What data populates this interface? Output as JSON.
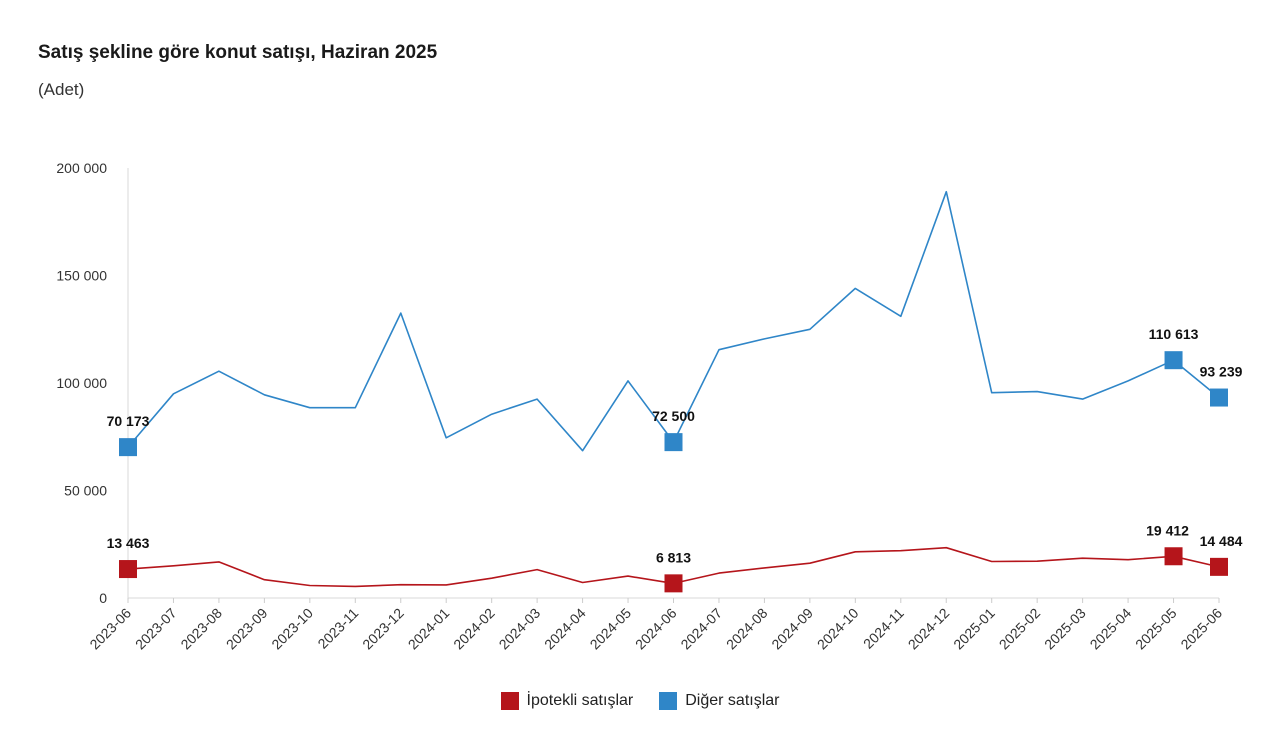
{
  "chart_data": {
    "type": "line",
    "title": "Satış şekline göre konut satışı, Haziran 2025",
    "subtitle": "(Adet)",
    "ylim": [
      0,
      200000
    ],
    "yticks": [
      0,
      50000,
      100000,
      150000,
      200000
    ],
    "ytick_labels": [
      "0",
      "50 000",
      "100 000",
      "150 000",
      "200 000"
    ],
    "categories": [
      "2023-06",
      "2023-07",
      "2023-08",
      "2023-09",
      "2023-10",
      "2023-11",
      "2023-12",
      "2024-01",
      "2024-02",
      "2024-03",
      "2024-04",
      "2024-05",
      "2024-06",
      "2024-07",
      "2024-08",
      "2024-09",
      "2024-10",
      "2024-11",
      "2024-12",
      "2025-01",
      "2025-02",
      "2025-03",
      "2025-04",
      "2025-05",
      "2025-06"
    ],
    "series": [
      {
        "name": "İpotekli satışlar",
        "color": "#b5151b",
        "values": [
          13463,
          15000,
          16800,
          8500,
          5800,
          5400,
          6200,
          6100,
          9200,
          13200,
          7200,
          10200,
          6813,
          11600,
          14000,
          16200,
          21500,
          22000,
          23400,
          17000,
          17100,
          18500,
          17800,
          19412,
          14484
        ],
        "labels": [
          {
            "index": 0,
            "text": "13 463"
          },
          {
            "index": 12,
            "text": "6 813"
          },
          {
            "index": 23,
            "text": "19 412"
          },
          {
            "index": 24,
            "text": "14 484"
          }
        ]
      },
      {
        "name": "Diğer satışlar",
        "color": "#2f86c8",
        "values": [
          70173,
          95000,
          105500,
          94500,
          88500,
          88500,
          132500,
          74500,
          85500,
          92500,
          68500,
          101000,
          72500,
          115500,
          120500,
          125000,
          144000,
          131000,
          189000,
          95500,
          96000,
          92500,
          101000,
          110613,
          93239
        ],
        "labels": [
          {
            "index": 0,
            "text": "70 173"
          },
          {
            "index": 12,
            "text": "72 500"
          },
          {
            "index": 23,
            "text": "110 613"
          },
          {
            "index": 24,
            "text": "93 239"
          }
        ]
      }
    ],
    "legend": "bottom-center"
  }
}
